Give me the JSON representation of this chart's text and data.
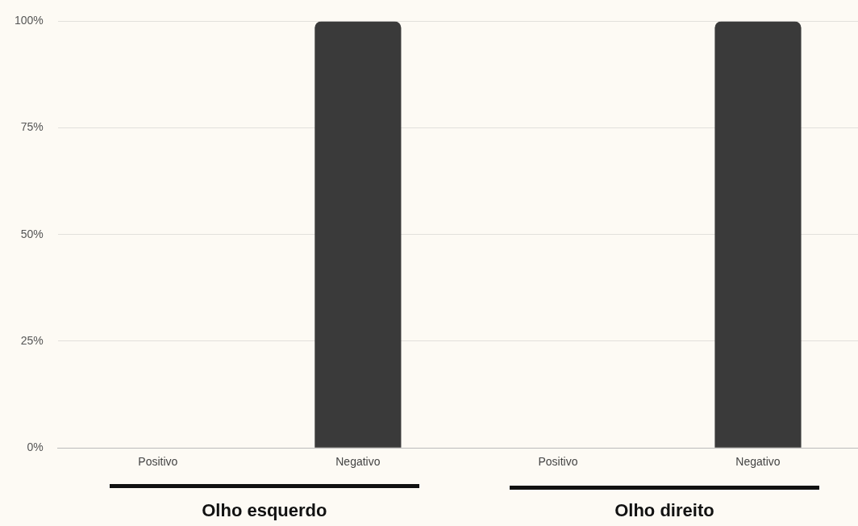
{
  "chart_data": {
    "type": "bar",
    "categories": [
      "Positivo",
      "Negativo",
      "Positivo",
      "Negativo"
    ],
    "values": [
      0,
      100,
      0,
      100
    ],
    "color": "#3a3a3a",
    "ylim": [
      0,
      100
    ],
    "yticks": [
      {
        "value": 0,
        "label": "0%"
      },
      {
        "value": 25,
        "label": "25%"
      },
      {
        "value": 50,
        "label": "50%"
      },
      {
        "value": 75,
        "label": "75%"
      },
      {
        "value": 100,
        "label": "100%"
      }
    ],
    "grid": "y",
    "legend": false,
    "annotations": [
      "Olho esquerdo",
      "Olho direito"
    ]
  }
}
